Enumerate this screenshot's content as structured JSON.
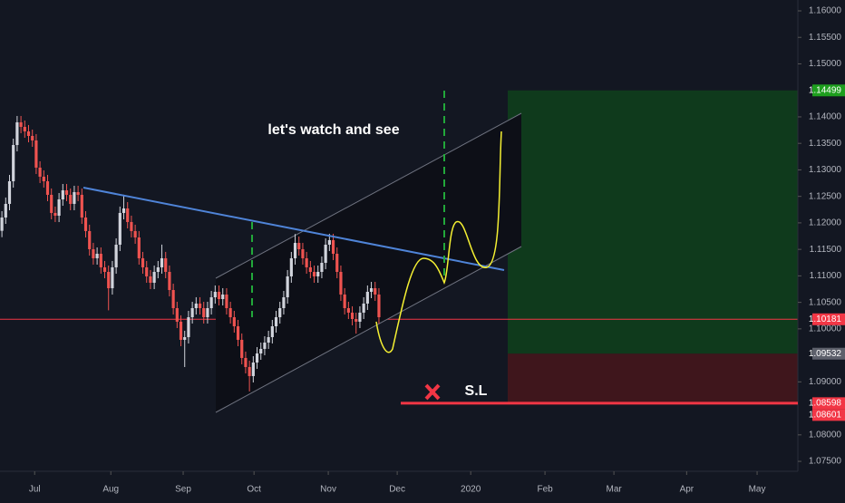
{
  "chart_data": {
    "type": "candlestick",
    "annotations": [
      "let's watch and see",
      "S.L"
    ],
    "xlim": [
      -0.5,
      209
    ],
    "xticks": [
      {
        "value": 8.6,
        "label": "Jul"
      },
      {
        "value": 28.6,
        "label": "Aug"
      },
      {
        "value": 47.6,
        "label": "Sep"
      },
      {
        "value": 66.2,
        "label": "Oct"
      },
      {
        "value": 85.7,
        "label": "Nov"
      },
      {
        "value": 103.8,
        "label": "Dec"
      },
      {
        "value": 123.1,
        "label": "2020"
      },
      {
        "value": 142.6,
        "label": "Feb"
      },
      {
        "value": 160.7,
        "label": "Mar"
      },
      {
        "value": 179.8,
        "label": "Apr"
      },
      {
        "value": 198.3,
        "label": "May"
      }
    ],
    "ylim": [
      1.07313,
      1.16205
    ],
    "yticks": [
      {
        "value": 1.075,
        "label": "1.07500"
      },
      {
        "value": 1.08,
        "label": "1.08000"
      },
      {
        "value": 1.09,
        "label": "1.09000"
      },
      {
        "value": 1.1,
        "label": "1.10000"
      },
      {
        "value": 1.105,
        "label": "1.10500"
      },
      {
        "value": 1.11,
        "label": "1.11000"
      },
      {
        "value": 1.115,
        "label": "1.11500"
      },
      {
        "value": 1.12,
        "label": "1.12000"
      },
      {
        "value": 1.125,
        "label": "1.12500"
      },
      {
        "value": 1.13,
        "label": "1.13000"
      },
      {
        "value": 1.135,
        "label": "1.13500"
      },
      {
        "value": 1.14,
        "label": "1.14000"
      },
      {
        "value": 1.15,
        "label": "1.15000"
      },
      {
        "value": 1.155,
        "label": "1.15500"
      },
      {
        "value": 1.16,
        "label": "1.16000"
      }
    ],
    "grid": false,
    "up_color": "#d1d4dc",
    "down_color": "#ef5350",
    "open": [
      1.1185,
      1.12101,
      1.12358,
      1.12785,
      1.13469,
      1.13897,
      1.13811,
      1.13726,
      1.1364,
      1.13555,
      1.13042,
      1.12871,
      1.12785,
      1.12529,
      1.12187,
      1.12135,
      1.12443,
      1.12614,
      1.12529,
      1.12358,
      1.1258,
      1.12529,
      1.12101,
      1.11845,
      1.11503,
      1.11332,
      1.11417,
      1.11161,
      1.11075,
      1.10767,
      1.11161,
      1.11588,
      1.12187,
      1.12272,
      1.12016,
      1.11845,
      1.11725,
      1.11332,
      1.11161,
      1.1099,
      1.1087,
      1.11075,
      1.11161,
      1.11332,
      1.11075,
      1.10733,
      1.10391,
      1.10135,
      1.09793,
      1.09844,
      1.1022,
      1.10391,
      1.10477,
      1.10391,
      1.1022,
      1.10391,
      1.10596,
      1.10699,
      1.10562,
      1.10648,
      1.10391,
      1.1022,
      1.10049,
      1.09793,
      1.09451,
      1.0928,
      1.09109,
      1.09365,
      1.09536,
      1.09622,
      1.09741,
      1.09844,
      1.10049,
      1.1022,
      1.10391,
      1.10596,
      1.1099,
      1.11332,
      1.11622,
      1.11503,
      1.11332,
      1.11161,
      1.11075,
      1.1099,
      1.11075,
      1.11246,
      1.11588,
      1.11674,
      1.11417,
      1.11075,
      1.10648,
      1.10391,
      1.10306,
      1.10186,
      1.10135,
      1.10306,
      1.10477,
      1.10699,
      1.10767,
      1.10648
    ],
    "high": [
      1.12221,
      1.12478,
      1.12905,
      1.13589,
      1.14017,
      1.14017,
      1.13931,
      1.13846,
      1.1376,
      1.13675,
      1.13162,
      1.12991,
      1.12905,
      1.12649,
      1.12307,
      1.12563,
      1.12734,
      1.12734,
      1.12649,
      1.127,
      1.127,
      1.12649,
      1.12221,
      1.11965,
      1.11623,
      1.11537,
      1.11537,
      1.11281,
      1.11195,
      1.11281,
      1.11708,
      1.12307,
      1.1253,
      1.12392,
      1.12136,
      1.11965,
      1.11845,
      1.11452,
      1.11281,
      1.1111,
      1.11195,
      1.11281,
      1.1159,
      1.11452,
      1.11195,
      1.10853,
      1.10511,
      1.10255,
      1.09964,
      1.1034,
      1.10511,
      1.10597,
      1.10597,
      1.10511,
      1.10511,
      1.10716,
      1.10819,
      1.10819,
      1.10768,
      1.10768,
      1.10511,
      1.1034,
      1.10169,
      1.09913,
      1.09571,
      1.094,
      1.09485,
      1.09656,
      1.09742,
      1.09861,
      1.09964,
      1.10169,
      1.1034,
      1.10511,
      1.10716,
      1.1111,
      1.11452,
      1.1179,
      1.11742,
      1.11623,
      1.11452,
      1.11281,
      1.11195,
      1.11195,
      1.11366,
      1.11708,
      1.11794,
      1.11794,
      1.11537,
      1.11195,
      1.10768,
      1.10511,
      1.10426,
      1.10306,
      1.10426,
      1.10597,
      1.10819,
      1.10887,
      1.10887,
      1.10768
    ],
    "low": [
      1.1173,
      1.11981,
      1.12238,
      1.12665,
      1.13349,
      1.13691,
      1.13606,
      1.1352,
      1.13435,
      1.12922,
      1.12751,
      1.12665,
      1.12409,
      1.12067,
      1.12015,
      1.12015,
      1.12323,
      1.12409,
      1.12238,
      1.12238,
      1.12409,
      1.11981,
      1.11725,
      1.11383,
      1.11212,
      1.11212,
      1.11041,
      1.10955,
      1.1035,
      1.10647,
      1.11041,
      1.11468,
      1.12067,
      1.11896,
      1.11725,
      1.11605,
      1.11212,
      1.11041,
      1.1087,
      1.1075,
      1.1075,
      1.10955,
      1.11041,
      1.10955,
      1.10613,
      1.10271,
      1.10015,
      1.09673,
      1.0928,
      1.09724,
      1.101,
      1.10271,
      1.10271,
      1.101,
      1.101,
      1.10271,
      1.10476,
      1.10442,
      1.10442,
      1.10271,
      1.101,
      1.09929,
      1.09673,
      1.09331,
      1.0916,
      1.0882,
      1.08989,
      1.09245,
      1.09416,
      1.09502,
      1.09621,
      1.09724,
      1.09929,
      1.101,
      1.10271,
      1.10476,
      1.1087,
      1.11212,
      1.11383,
      1.11212,
      1.11041,
      1.10955,
      1.1087,
      1.1087,
      1.10955,
      1.11126,
      1.11468,
      1.11297,
      1.10955,
      1.10528,
      1.10271,
      1.10186,
      1.10066,
      1.0991,
      1.10015,
      1.10186,
      1.10357,
      1.10579,
      1.10528,
      1.101
    ],
    "close": [
      1.12101,
      1.12358,
      1.12785,
      1.13469,
      1.13897,
      1.13811,
      1.13726,
      1.1364,
      1.13555,
      1.13042,
      1.12871,
      1.12785,
      1.12529,
      1.12187,
      1.12135,
      1.12443,
      1.12614,
      1.12529,
      1.12358,
      1.1258,
      1.12529,
      1.12101,
      1.11845,
      1.11503,
      1.11332,
      1.11417,
      1.11161,
      1.11075,
      1.10767,
      1.11161,
      1.11588,
      1.12187,
      1.12272,
      1.12016,
      1.11845,
      1.11725,
      1.11332,
      1.11161,
      1.1099,
      1.1087,
      1.11075,
      1.11161,
      1.11332,
      1.11075,
      1.10733,
      1.10391,
      1.10135,
      1.09793,
      1.09844,
      1.1022,
      1.10391,
      1.10477,
      1.10391,
      1.1022,
      1.10391,
      1.10596,
      1.10699,
      1.10562,
      1.10648,
      1.10391,
      1.1022,
      1.10049,
      1.09793,
      1.09451,
      1.0928,
      1.09109,
      1.09365,
      1.09536,
      1.09622,
      1.09741,
      1.09844,
      1.10049,
      1.1022,
      1.10391,
      1.10596,
      1.1099,
      1.11332,
      1.11622,
      1.11503,
      1.11332,
      1.11161,
      1.11075,
      1.1099,
      1.11075,
      1.11246,
      1.11588,
      1.11674,
      1.11417,
      1.11075,
      1.10648,
      1.10391,
      1.10306,
      1.10186,
      1.10135,
      1.10306,
      1.10477,
      1.10699,
      1.10767,
      1.10648,
      1.1022
    ],
    "price_labels": [
      1.14499,
      1.10181,
      1.09532,
      1.08598,
      1.08601
    ],
    "price_label_colors": [
      "#1e9e1e",
      "#f23645",
      "#5d606b",
      "#f23645",
      "#f23645"
    ],
    "take_profit_color": "#0f3a1c",
    "stop_color": "#3f161c"
  }
}
